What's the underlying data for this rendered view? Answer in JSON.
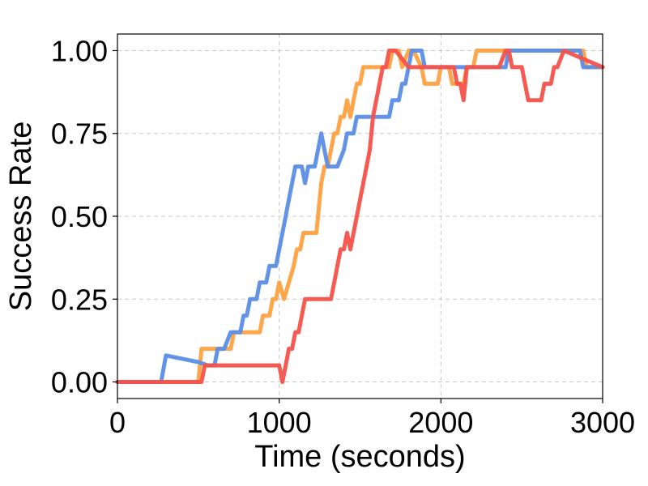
{
  "chart_data": {
    "type": "line",
    "title": "",
    "xlabel": "Time (seconds)",
    "ylabel": "Success Rate",
    "xlim": [
      0,
      3000
    ],
    "ylim": [
      -0.05,
      1.05
    ],
    "xticks": [
      0,
      1000,
      2000,
      3000
    ],
    "xtick_labels": [
      "0",
      "1000",
      "2000",
      "3000"
    ],
    "yticks": [
      0,
      0.25,
      0.5,
      0.75,
      1.0
    ],
    "ytick_labels": [
      "0.00",
      "0.25",
      "0.50",
      "0.75",
      "1.00"
    ],
    "grid": true,
    "legend": "none",
    "series": [
      {
        "color": "#ffa040",
        "x": [
          0,
          500,
          520,
          700,
          720,
          770,
          790,
          880,
          900,
          940,
          960,
          980,
          1000,
          1030,
          1060,
          1090,
          1110,
          1130,
          1150,
          1230,
          1260,
          1280,
          1300,
          1320,
          1340,
          1360,
          1380,
          1400,
          1420,
          1440,
          1460,
          1480,
          1500,
          1520,
          1540,
          1560,
          1600,
          1680,
          1700,
          1740,
          1760,
          1800,
          1830,
          1880,
          1900,
          1980,
          2000,
          2050,
          2070,
          2140,
          2160,
          2200,
          2220,
          2300,
          2320,
          2800,
          2830,
          2880,
          2900,
          3000
        ],
        "y": [
          0,
          0,
          0.1,
          0.1,
          0.15,
          0.15,
          0.15,
          0.15,
          0.2,
          0.2,
          0.25,
          0.25,
          0.3,
          0.25,
          0.3,
          0.35,
          0.4,
          0.4,
          0.45,
          0.45,
          0.6,
          0.65,
          0.65,
          0.7,
          0.75,
          0.75,
          0.8,
          0.8,
          0.85,
          0.8,
          0.85,
          0.9,
          0.9,
          0.95,
          0.95,
          0.95,
          0.95,
          0.95,
          1.0,
          1.0,
          0.95,
          1.0,
          1.0,
          0.95,
          0.9,
          0.9,
          0.95,
          0.95,
          0.9,
          0.9,
          0.95,
          0.95,
          1.0,
          1.0,
          1.0,
          1.0,
          1.0,
          1.0,
          0.95,
          0.95
        ]
      },
      {
        "color": "#5b8de6",
        "x": [
          0,
          270,
          300,
          400,
          500,
          560,
          600,
          620,
          640,
          660,
          700,
          740,
          760,
          780,
          800,
          820,
          840,
          860,
          880,
          900,
          920,
          940,
          960,
          980,
          1000,
          1020,
          1040,
          1060,
          1080,
          1100,
          1120,
          1140,
          1160,
          1180,
          1200,
          1220,
          1240,
          1260,
          1280,
          1300,
          1330,
          1360,
          1400,
          1420,
          1440,
          1460,
          1480,
          1500,
          1540,
          1660,
          1680,
          1700,
          1720,
          1740,
          1760,
          1780,
          1800,
          1820,
          1840,
          1860,
          1880,
          1900,
          1940,
          2000,
          2400,
          2420,
          2840,
          2860,
          2880,
          2900,
          3000
        ],
        "y": [
          0,
          0,
          0.08,
          0.07,
          0.06,
          0.05,
          0.05,
          0.1,
          0.1,
          0.1,
          0.15,
          0.15,
          0.15,
          0.2,
          0.2,
          0.25,
          0.25,
          0.25,
          0.3,
          0.3,
          0.3,
          0.35,
          0.35,
          0.35,
          0.4,
          0.45,
          0.5,
          0.55,
          0.6,
          0.65,
          0.65,
          0.65,
          0.6,
          0.65,
          0.65,
          0.65,
          0.7,
          0.75,
          0.7,
          0.65,
          0.65,
          0.65,
          0.7,
          0.75,
          0.75,
          0.75,
          0.8,
          0.8,
          0.8,
          0.8,
          0.8,
          0.85,
          0.85,
          0.85,
          0.9,
          0.9,
          0.95,
          1.0,
          1.0,
          1.0,
          1.0,
          0.95,
          0.95,
          0.95,
          0.95,
          1.0,
          1.0,
          1.0,
          0.95,
          0.95,
          0.95
        ]
      },
      {
        "color": "#f5524a",
        "x": [
          0,
          520,
          540,
          980,
          1000,
          1020,
          1040,
          1060,
          1080,
          1100,
          1120,
          1140,
          1160,
          1200,
          1220,
          1320,
          1340,
          1360,
          1380,
          1400,
          1420,
          1440,
          1460,
          1480,
          1500,
          1520,
          1540,
          1560,
          1580,
          1600,
          1620,
          1640,
          1660,
          1680,
          1700,
          1720,
          1800,
          1830,
          1860,
          2080,
          2100,
          2120,
          2140,
          2160,
          2180,
          2360,
          2400,
          2420,
          2440,
          2460,
          2500,
          2520,
          2540,
          2620,
          2640,
          2660,
          2680,
          2700,
          2720,
          2760,
          3000
        ],
        "y": [
          0,
          0,
          0.05,
          0.05,
          0.05,
          0.0,
          0.05,
          0.1,
          0.1,
          0.15,
          0.15,
          0.2,
          0.25,
          0.25,
          0.25,
          0.25,
          0.3,
          0.35,
          0.4,
          0.4,
          0.45,
          0.4,
          0.45,
          0.5,
          0.55,
          0.6,
          0.65,
          0.7,
          0.8,
          0.85,
          0.9,
          0.95,
          0.95,
          1.0,
          1.0,
          1.0,
          0.95,
          0.95,
          0.95,
          0.95,
          0.9,
          0.9,
          0.85,
          0.95,
          0.95,
          0.95,
          1.0,
          1.0,
          0.95,
          0.95,
          0.95,
          0.9,
          0.85,
          0.85,
          0.9,
          0.9,
          0.9,
          0.95,
          0.95,
          1.0,
          0.95
        ]
      }
    ]
  }
}
